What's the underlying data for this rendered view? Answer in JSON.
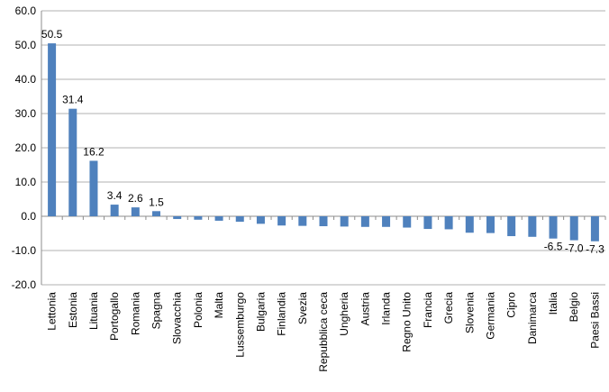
{
  "chart_data": {
    "type": "bar",
    "categories": [
      "Lettonia",
      "Estonia",
      "Lituania",
      "Portogallo",
      "Romania",
      "Spagna",
      "Slovacchia",
      "Polonia",
      "Malta",
      "Lussemburgo",
      "Bulgaria",
      "Finlandia",
      "Svezia",
      "Repubblica ceca",
      "Ungheria",
      "Austria",
      "Irlanda",
      "Regno Unito",
      "Francia",
      "Grecia",
      "Slovenia",
      "Germania",
      "Cipro",
      "Danimarca",
      "Italia",
      "Belgio",
      "Paesi Bassi"
    ],
    "values": [
      50.5,
      31.4,
      16.2,
      3.4,
      2.6,
      1.5,
      -0.8,
      -1.0,
      -1.3,
      -1.6,
      -2.2,
      -2.7,
      -2.8,
      -2.9,
      -3.0,
      -3.1,
      -3.1,
      -3.3,
      -3.7,
      -3.8,
      -4.8,
      -4.9,
      -5.8,
      -6.0,
      -6.5,
      -7.0,
      -7.3
    ],
    "data_labels": [
      "50.5",
      "31.4",
      "16.2",
      "3.4",
      "2.6",
      "1.5",
      "",
      "",
      "",
      "",
      "",
      "",
      "",
      "",
      "",
      "",
      "",
      "",
      "",
      "",
      "",
      "",
      "",
      "",
      "-6.5",
      "-7.0",
      "-7.3"
    ],
    "yticks": [
      "60.0",
      "50.0",
      "40.0",
      "30.0",
      "20.0",
      "10.0",
      "0.0",
      "-10.0",
      "-20.0"
    ],
    "ylim": [
      -20,
      60
    ],
    "grid": true,
    "bar_color": "#4f81bd",
    "grid_color": "#b0b0b0",
    "title": "",
    "xlabel": "",
    "ylabel": ""
  }
}
